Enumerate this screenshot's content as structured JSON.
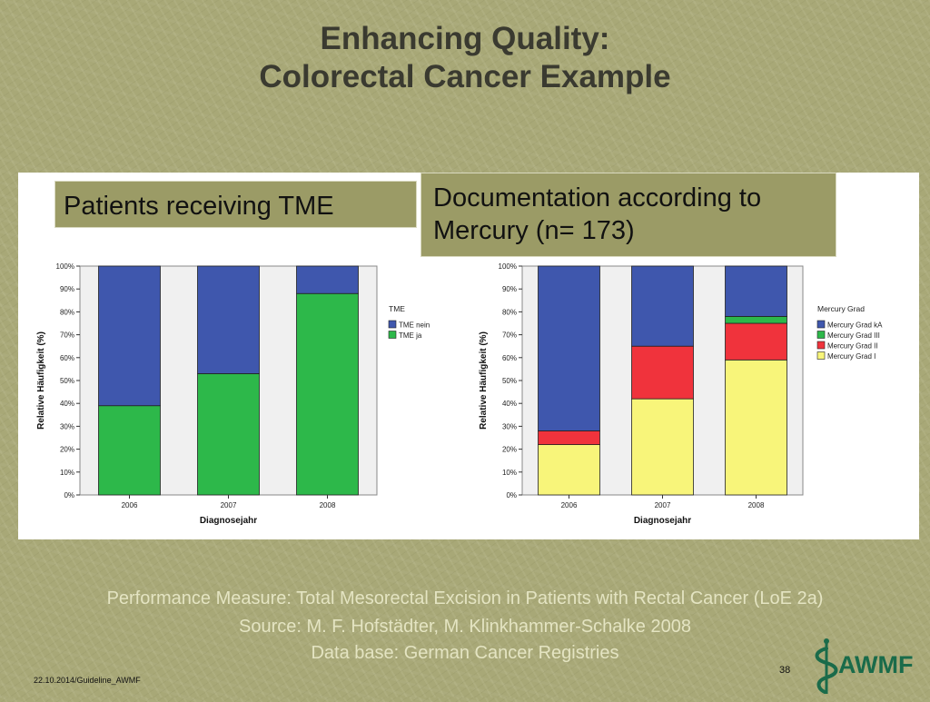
{
  "slide": {
    "title_line1": "Enhancing Quality:",
    "title_line2": "Colorectal Cancer Example",
    "left_label": "Patients receiving TME",
    "right_label": "Documentation according to Mercury (n= 173)",
    "footer_line1": "Performance Measure: Total Mesorectal Excision in Patients with Rectal Cancer (LoE 2a)",
    "footer_line2": "Source: M. F. Hofstädter, M. Klinkhammer-Schalke 2008",
    "footer_line3": "Data base:  German Cancer Registries",
    "date_text": "22.10.2014/Guideline_AWMF",
    "page_number": "38",
    "logo_text": "AWMF",
    "logo_icon": "caduceus-icon"
  },
  "chart_data": [
    {
      "type": "bar",
      "stacked": true,
      "categories": [
        "2006",
        "2007",
        "2008"
      ],
      "xlabel": "Diagnosejahr",
      "ylabel": "Relative Häufigkeit (%)",
      "ylim": [
        0,
        100
      ],
      "yticks": [
        "0%",
        "10%",
        "20%",
        "30%",
        "40%",
        "50%",
        "60%",
        "70%",
        "80%",
        "90%",
        "100%"
      ],
      "legend_title": "TME",
      "legend_position": "right",
      "series": [
        {
          "name": "TME ja",
          "color": "#2db84a",
          "values": [
            39,
            53,
            88
          ]
        },
        {
          "name": "TME nein",
          "color": "#3f57ad",
          "values": [
            61,
            47,
            12
          ]
        }
      ],
      "legend_order": [
        1,
        0
      ]
    },
    {
      "type": "bar",
      "stacked": true,
      "categories": [
        "2006",
        "2007",
        "2008"
      ],
      "xlabel": "Diagnosejahr",
      "ylabel": "Relative Häufigkeit (%)",
      "ylim": [
        0,
        100
      ],
      "yticks": [
        "0%",
        "10%",
        "20%",
        "30%",
        "40%",
        "50%",
        "60%",
        "70%",
        "80%",
        "90%",
        "100%"
      ],
      "legend_title": "Mercury Grad",
      "legend_position": "right",
      "series": [
        {
          "name": "Mercury Grad I",
          "color": "#f8f57a",
          "values": [
            22,
            42,
            59
          ]
        },
        {
          "name": "Mercury Grad II",
          "color": "#f0333c",
          "values": [
            6,
            23,
            16
          ]
        },
        {
          "name": "Mercury Grad III",
          "color": "#2db84a",
          "values": [
            0,
            0,
            3
          ]
        },
        {
          "name": "Mercury Grad kA",
          "color": "#3f57ad",
          "values": [
            72,
            35,
            22
          ]
        }
      ],
      "legend_order": [
        3,
        2,
        1,
        0
      ]
    }
  ]
}
